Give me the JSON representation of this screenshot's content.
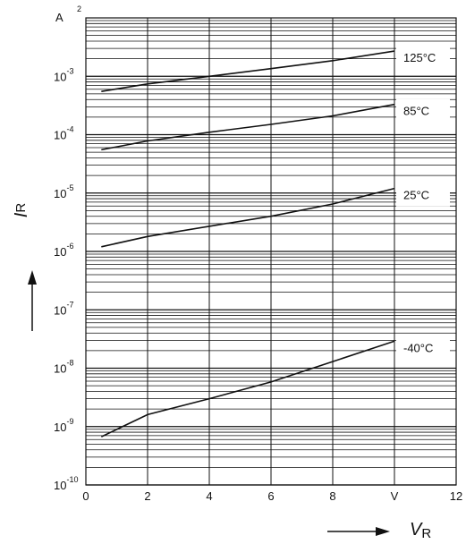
{
  "chart_data": {
    "type": "line",
    "x_axis": {
      "label_main": "V",
      "label_sub": "R",
      "unit": "V",
      "range": [
        0,
        12
      ],
      "tick_labels": [
        {
          "value": 0,
          "text": "0"
        },
        {
          "value": 2,
          "text": "2"
        },
        {
          "value": 4,
          "text": "4"
        },
        {
          "value": 6,
          "text": "6"
        },
        {
          "value": 8,
          "text": "8"
        },
        {
          "value": 12,
          "text": "12"
        }
      ],
      "unit_position_value": 10
    },
    "y_axis": {
      "label_main": "I",
      "label_sub": "R",
      "unit": "A",
      "scale": "log",
      "range": [
        1e-10,
        0.01
      ],
      "tick_labels": [
        {
          "exp": -3,
          "base": "10",
          "sup": "-3"
        },
        {
          "exp": -4,
          "base": "10",
          "sup": "-4"
        },
        {
          "exp": -5,
          "base": "10",
          "sup": "-5"
        },
        {
          "exp": -6,
          "base": "10",
          "sup": "-6"
        },
        {
          "exp": -7,
          "base": "10",
          "sup": "-7"
        },
        {
          "exp": -8,
          "base": "10",
          "sup": "-8"
        },
        {
          "exp": -9,
          "base": "10",
          "sup": "-9"
        },
        {
          "exp": -10,
          "base": "10",
          "sup": "-10"
        }
      ],
      "unit_sup": "2"
    },
    "grid": true,
    "series": [
      {
        "name": "125°C",
        "x": [
          0.5,
          2,
          4,
          6,
          8,
          10
        ],
        "y": [
          0.00055,
          0.00074,
          0.001,
          0.00135,
          0.00185,
          0.0027
        ]
      },
      {
        "name": "85°C",
        "x": [
          0.5,
          2,
          4,
          6,
          8,
          10
        ],
        "y": [
          5.5e-05,
          7.8e-05,
          0.00011,
          0.00015,
          0.00021,
          0.00033
        ]
      },
      {
        "name": "25°C",
        "x": [
          0.5,
          2,
          4,
          6,
          8,
          10
        ],
        "y": [
          1.2e-06,
          1.8e-06,
          2.7e-06,
          4e-06,
          6.5e-06,
          1.2e-05
        ]
      },
      {
        "name": "-40°C",
        "x": [
          0.5,
          2,
          4,
          6,
          8,
          10
        ],
        "y": [
          6.7e-10,
          1.6e-09,
          3e-09,
          5.8e-09,
          1.3e-08,
          2.9e-08
        ]
      }
    ]
  }
}
